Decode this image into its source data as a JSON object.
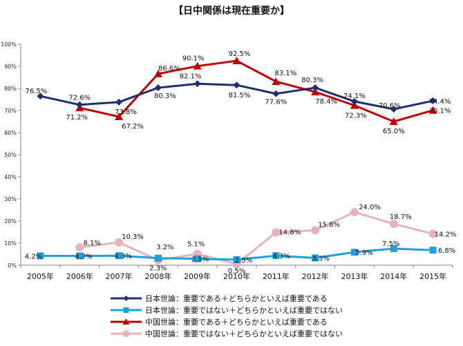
{
  "chart_data": {
    "type": "line",
    "title": "【日中関係は現在重要か】",
    "x": [
      "2005年",
      "2006年",
      "2007年",
      "2008年",
      "2009年",
      "2010年",
      "2011年",
      "2012年",
      "2013年",
      "2014年",
      "2015年"
    ],
    "y_ticks": [
      "0%",
      "10%",
      "20%",
      "30%",
      "40%",
      "50%",
      "60%",
      "70%",
      "80%",
      "90%",
      "100%"
    ],
    "ylim": [
      0,
      100
    ],
    "grid": false,
    "legend_position": "bottom",
    "series": [
      {
        "name": "日本世論：重要である＋どちらかといえば重要である",
        "color": "#1f2f6e",
        "marker": "diamond",
        "values": [
          76.5,
          72.6,
          73.8,
          80.3,
          82.1,
          81.5,
          77.6,
          80.3,
          74.1,
          70.6,
          74.4
        ],
        "labels": [
          "76.5%",
          "72.6%",
          "73.8%",
          "80.3%",
          "82.1%",
          "81.5%",
          "77.6%",
          "80.3%",
          "74.1%",
          "70.6%",
          "74.4%"
        ]
      },
      {
        "name": "日本世論：重要ではない＋どちらかといえば重要ではない",
        "color": "#1ea0dc",
        "marker": "square",
        "values": [
          4.2,
          4.2,
          4.3,
          3.2,
          2.9,
          2.5,
          4.3,
          3.3,
          5.9,
          7.5,
          6.8
        ],
        "labels": [
          "4.2%",
          "4.2%",
          "4.3%",
          "3.2%",
          "2.9%",
          "2.5%",
          "4.3%",
          "3.3%",
          "5.9%",
          "7.5%",
          "6.8%"
        ]
      },
      {
        "name": "中国世論：重要である＋どちらかといえば重要である",
        "color": "#c00000",
        "marker": "triangle",
        "values": [
          null,
          71.2,
          67.2,
          86.6,
          90.1,
          92.5,
          83.1,
          78.4,
          72.3,
          65.0,
          70.1
        ],
        "labels": [
          "",
          "71.2%",
          "67.2%",
          "86.6%",
          "90.1%",
          "92.5%",
          "83.1%",
          "78.4%",
          "72.3%",
          "65.0%",
          "70.1%"
        ]
      },
      {
        "name": "中国世論：重要ではない＋どちらかといえば重要ではない",
        "color": "#e6b4b8",
        "marker": "circle",
        "values": [
          null,
          8.1,
          10.3,
          2.3,
          5.1,
          0.5,
          14.8,
          15.8,
          24.0,
          18.7,
          14.2
        ],
        "labels": [
          "",
          "8.1%",
          "10.3%",
          "2.3%",
          "5.1%",
          "0.5%",
          "14.8%",
          "15.8%",
          "24.0%",
          "18.7%",
          "14.2%"
        ]
      }
    ]
  }
}
